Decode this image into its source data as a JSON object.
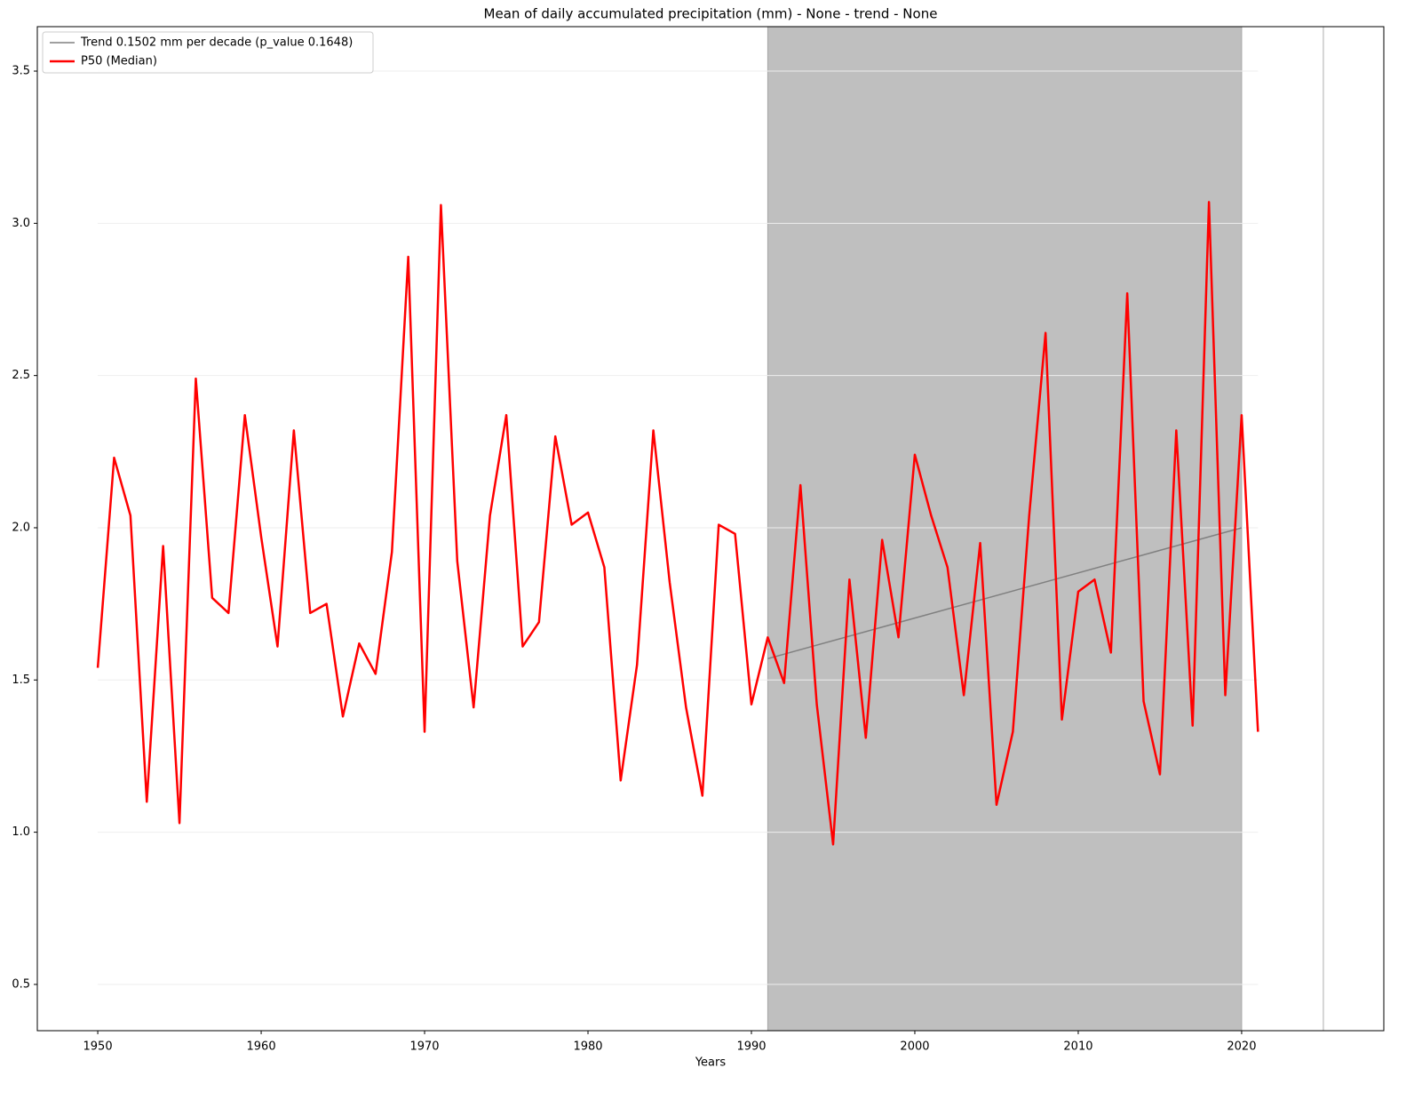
{
  "chart_data": {
    "type": "line",
    "title": "Mean of daily accumulated precipitation (mm) - None - trend  - None",
    "xlabel": "Years",
    "x": [
      1950,
      1951,
      1952,
      1953,
      1954,
      1955,
      1956,
      1957,
      1958,
      1959,
      1960,
      1961,
      1962,
      1963,
      1964,
      1965,
      1966,
      1967,
      1968,
      1969,
      1970,
      1971,
      1972,
      1973,
      1974,
      1975,
      1976,
      1977,
      1978,
      1979,
      1980,
      1981,
      1982,
      1983,
      1984,
      1985,
      1986,
      1987,
      1988,
      1989,
      1990,
      1991,
      1992,
      1993,
      1994,
      1995,
      1996,
      1997,
      1998,
      1999,
      2000,
      2001,
      2002,
      2003,
      2004,
      2005,
      2006,
      2007,
      2008,
      2009,
      2010,
      2011,
      2012,
      2013,
      2014,
      2015,
      2016,
      2017,
      2018,
      2019,
      2020,
      2021
    ],
    "series": [
      {
        "name": "Trend 0.1502 mm per decade (p_value 0.1648)",
        "color": "#808080",
        "width": 1.5,
        "x": [
          1991,
          2020
        ],
        "values": [
          1.57,
          2.0
        ]
      },
      {
        "name": "P50 (Median)",
        "color": "#ff0000",
        "width": 2.5,
        "values": [
          1.54,
          2.23,
          2.04,
          1.1,
          1.94,
          1.03,
          2.49,
          1.77,
          1.72,
          2.37,
          1.97,
          1.61,
          2.32,
          1.72,
          1.75,
          1.38,
          1.62,
          1.52,
          1.92,
          2.89,
          1.33,
          3.06,
          1.89,
          1.41,
          2.04,
          2.37,
          1.61,
          1.69,
          2.3,
          2.01,
          2.05,
          1.87,
          1.17,
          1.55,
          2.32,
          1.82,
          1.41,
          1.12,
          2.01,
          1.98,
          1.42,
          1.64,
          1.49,
          2.14,
          1.42,
          0.96,
          1.83,
          1.31,
          1.96,
          1.64,
          2.24,
          2.04,
          1.87,
          1.45,
          1.95,
          1.09,
          1.33,
          2.04,
          2.64,
          1.37,
          1.79,
          1.83,
          1.59,
          2.77,
          1.43,
          1.19,
          2.32,
          1.35,
          3.07,
          1.45,
          2.37,
          1.33
        ]
      }
    ],
    "shade": [
      1991,
      2020
    ],
    "shade_color": "#bfbfbf",
    "vline": 2025,
    "vline_color": "#c8c8c8",
    "xlim": [
      1946.3,
      2028.7
    ],
    "xticks": [
      1950,
      1960,
      1970,
      1980,
      1990,
      2000,
      2010,
      2020
    ],
    "ylim": [
      0.348,
      3.646
    ],
    "yticks": [
      0.5,
      {
        "value": 1,
        "label": "1.0"
      },
      1.5,
      {
        "value": 2,
        "label": "2.0"
      },
      2.5,
      {
        "value": 3,
        "label": "3.0"
      },
      3.5
    ],
    "grid": true,
    "legend": "upper left"
  }
}
